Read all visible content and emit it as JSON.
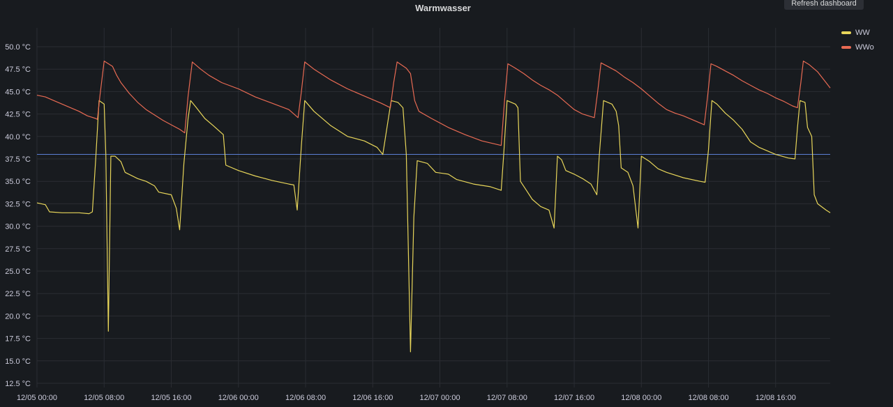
{
  "panel": {
    "title": "Warmwasser",
    "refresh_label": "Refresh dashboard"
  },
  "chart_data": {
    "type": "line",
    "title": "Warmwasser",
    "xlabel": "",
    "ylabel": "",
    "y_unit": "°C",
    "ylim": [
      12.5,
      52.0
    ],
    "y_ticks": [
      "50.0 °C",
      "47.5 °C",
      "45.0 °C",
      "42.5 °C",
      "40.0 °C",
      "37.5 °C",
      "35.0 °C",
      "32.5 °C",
      "30.0 °C",
      "27.5 °C",
      "25.0 °C",
      "22.5 °C",
      "20.0 °C",
      "17.5 °C",
      "15.0 °C",
      "12.5 °C"
    ],
    "x_ticks": [
      "12/05 00:00",
      "12/05 08:00",
      "12/05 16:00",
      "12/06 00:00",
      "12/06 08:00",
      "12/06 16:00",
      "12/07 00:00",
      "12/07 08:00",
      "12/07 16:00",
      "12/08 00:00",
      "12/08 08:00",
      "12/08 16:00"
    ],
    "x_unit": "hours since 12/05 00:00",
    "xlim": [
      0,
      94.5
    ],
    "grid": true,
    "legend_position": "top-right",
    "threshold": {
      "value": 38.0,
      "color": "#5b7fd6"
    },
    "series": [
      {
        "name": "WW",
        "color": "#e8d65a",
        "points": [
          [
            0,
            32.6
          ],
          [
            1.0,
            32.4
          ],
          [
            1.5,
            31.6
          ],
          [
            3,
            31.5
          ],
          [
            5,
            31.5
          ],
          [
            6.2,
            31.4
          ],
          [
            6.6,
            31.6
          ],
          [
            7.0,
            37.5
          ],
          [
            7.4,
            44.0
          ],
          [
            8.0,
            43.6
          ],
          [
            8.2,
            38.0
          ],
          [
            8.5,
            18.3
          ],
          [
            8.8,
            37.8
          ],
          [
            9.3,
            37.8
          ],
          [
            10,
            37.2
          ],
          [
            10.5,
            36.0
          ],
          [
            12,
            35.3
          ],
          [
            13,
            35.0
          ],
          [
            14,
            34.5
          ],
          [
            14.5,
            33.8
          ],
          [
            16,
            33.5
          ],
          [
            16.6,
            32.0
          ],
          [
            17.0,
            29.6
          ],
          [
            17.5,
            37.0
          ],
          [
            18.0,
            42.0
          ],
          [
            18.3,
            44.0
          ],
          [
            19,
            43.2
          ],
          [
            20,
            42.0
          ],
          [
            21,
            41.2
          ],
          [
            22.2,
            40.2
          ],
          [
            22.5,
            36.8
          ],
          [
            24,
            36.2
          ],
          [
            26,
            35.6
          ],
          [
            28,
            35.1
          ],
          [
            30,
            34.7
          ],
          [
            30.6,
            34.6
          ],
          [
            31.0,
            31.8
          ],
          [
            31.5,
            39.0
          ],
          [
            31.9,
            44.0
          ],
          [
            33,
            42.8
          ],
          [
            35,
            41.2
          ],
          [
            37,
            40.0
          ],
          [
            39,
            39.5
          ],
          [
            40.5,
            38.8
          ],
          [
            41.2,
            38.0
          ],
          [
            41.7,
            41.0
          ],
          [
            42.2,
            44.0
          ],
          [
            43,
            43.8
          ],
          [
            43.6,
            43.2
          ],
          [
            44.0,
            38.0
          ],
          [
            44.5,
            16.0
          ],
          [
            44.9,
            31.0
          ],
          [
            45.3,
            37.3
          ],
          [
            46.5,
            37.0
          ],
          [
            47.5,
            36.0
          ],
          [
            49,
            35.8
          ],
          [
            50,
            35.2
          ],
          [
            52,
            34.7
          ],
          [
            54,
            34.4
          ],
          [
            55.3,
            34.0
          ],
          [
            55.6,
            38.0
          ],
          [
            56.0,
            44.0
          ],
          [
            57,
            43.6
          ],
          [
            57.3,
            43.2
          ],
          [
            57.6,
            35.0
          ],
          [
            58.3,
            34.0
          ],
          [
            59,
            33.0
          ],
          [
            60,
            32.2
          ],
          [
            61,
            31.8
          ],
          [
            61.6,
            29.8
          ],
          [
            62.0,
            37.8
          ],
          [
            62.5,
            37.4
          ],
          [
            63,
            36.2
          ],
          [
            64,
            35.8
          ],
          [
            65,
            35.3
          ],
          [
            66,
            34.7
          ],
          [
            66.7,
            33.5
          ],
          [
            67.0,
            38.0
          ],
          [
            67.5,
            44.0
          ],
          [
            68.5,
            43.6
          ],
          [
            69.0,
            42.8
          ],
          [
            69.3,
            41.2
          ],
          [
            69.6,
            36.5
          ],
          [
            70.4,
            36.0
          ],
          [
            71.0,
            34.5
          ],
          [
            71.6,
            29.8
          ],
          [
            72.0,
            37.8
          ],
          [
            73,
            37.2
          ],
          [
            74,
            36.4
          ],
          [
            75,
            36.0
          ],
          [
            77,
            35.4
          ],
          [
            79,
            35.0
          ],
          [
            79.6,
            34.9
          ],
          [
            80.0,
            38.5
          ],
          [
            80.4,
            44.0
          ],
          [
            81,
            43.6
          ],
          [
            82,
            42.6
          ],
          [
            83,
            41.8
          ],
          [
            84,
            40.8
          ],
          [
            85,
            39.4
          ],
          [
            86,
            38.8
          ],
          [
            88,
            38.0
          ],
          [
            89.5,
            37.6
          ],
          [
            90.3,
            37.5
          ],
          [
            90.6,
            41.0
          ],
          [
            90.9,
            44.0
          ],
          [
            91.5,
            43.8
          ],
          [
            91.8,
            41.0
          ],
          [
            92.3,
            40.0
          ],
          [
            92.6,
            33.5
          ],
          [
            93,
            32.5
          ],
          [
            94,
            31.8
          ],
          [
            94.5,
            31.5
          ]
        ]
      },
      {
        "name": "WWo",
        "color": "#e86a53",
        "points": [
          [
            0,
            44.6
          ],
          [
            1,
            44.4
          ],
          [
            2,
            44.0
          ],
          [
            3,
            43.6
          ],
          [
            4,
            43.2
          ],
          [
            5,
            42.8
          ],
          [
            6,
            42.3
          ],
          [
            7,
            42.0
          ],
          [
            7.2,
            41.9
          ],
          [
            7.5,
            44.5
          ],
          [
            8.0,
            48.4
          ],
          [
            9.0,
            47.8
          ],
          [
            9.5,
            46.8
          ],
          [
            10,
            46.0
          ],
          [
            11,
            44.8
          ],
          [
            12,
            43.8
          ],
          [
            13,
            43.0
          ],
          [
            14,
            42.4
          ],
          [
            15,
            41.8
          ],
          [
            16,
            41.3
          ],
          [
            17,
            40.8
          ],
          [
            17.6,
            40.4
          ],
          [
            18.0,
            44.5
          ],
          [
            18.5,
            48.3
          ],
          [
            19.5,
            47.5
          ],
          [
            20.5,
            46.8
          ],
          [
            22,
            46.0
          ],
          [
            24,
            45.3
          ],
          [
            26,
            44.4
          ],
          [
            28,
            43.7
          ],
          [
            30,
            43.0
          ],
          [
            31.1,
            42.1
          ],
          [
            31.5,
            45.0
          ],
          [
            31.9,
            48.3
          ],
          [
            33,
            47.5
          ],
          [
            35,
            46.3
          ],
          [
            37,
            45.3
          ],
          [
            39,
            44.5
          ],
          [
            41,
            43.7
          ],
          [
            42.1,
            43.2
          ],
          [
            42.5,
            46.0
          ],
          [
            42.9,
            48.3
          ],
          [
            44,
            47.6
          ],
          [
            44.5,
            47.0
          ],
          [
            45.0,
            44.0
          ],
          [
            45.5,
            42.8
          ],
          [
            47,
            42.0
          ],
          [
            49,
            41.0
          ],
          [
            51,
            40.2
          ],
          [
            53,
            39.5
          ],
          [
            55.3,
            39.0
          ],
          [
            55.7,
            44.0
          ],
          [
            56.1,
            48.1
          ],
          [
            57,
            47.6
          ],
          [
            58,
            47.0
          ],
          [
            59,
            46.3
          ],
          [
            60,
            45.7
          ],
          [
            61,
            45.2
          ],
          [
            62,
            44.6
          ],
          [
            63,
            43.8
          ],
          [
            64,
            43.0
          ],
          [
            65,
            42.5
          ],
          [
            66.4,
            42.1
          ],
          [
            66.8,
            45.0
          ],
          [
            67.2,
            48.2
          ],
          [
            68,
            47.8
          ],
          [
            69,
            47.3
          ],
          [
            70,
            46.6
          ],
          [
            71,
            46.0
          ],
          [
            72,
            45.3
          ],
          [
            73,
            44.5
          ],
          [
            74,
            43.7
          ],
          [
            75,
            43.0
          ],
          [
            76,
            42.6
          ],
          [
            77,
            42.3
          ],
          [
            78,
            41.9
          ],
          [
            79.5,
            41.3
          ],
          [
            79.9,
            44.5
          ],
          [
            80.3,
            48.1
          ],
          [
            81,
            47.8
          ],
          [
            82,
            47.3
          ],
          [
            83,
            46.8
          ],
          [
            84,
            46.2
          ],
          [
            85,
            45.7
          ],
          [
            86,
            45.2
          ],
          [
            87,
            44.8
          ],
          [
            88,
            44.3
          ],
          [
            89,
            43.9
          ],
          [
            90,
            43.4
          ],
          [
            90.6,
            43.2
          ],
          [
            91.0,
            46.0
          ],
          [
            91.3,
            48.4
          ],
          [
            92,
            48.0
          ],
          [
            93,
            47.2
          ],
          [
            94,
            46.0
          ],
          [
            94.5,
            45.4
          ]
        ]
      }
    ]
  }
}
